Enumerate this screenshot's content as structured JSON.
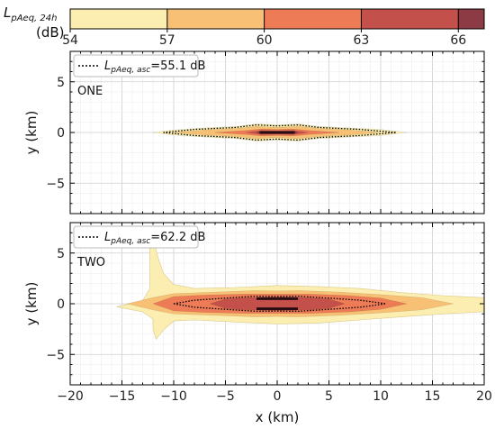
{
  "colorbar": {
    "title_main": "L",
    "title_sub": "pAeq, 24h",
    "unit": "(dB)",
    "levels": [
      54,
      57,
      60,
      63,
      66
    ],
    "colors": [
      "#fbeeb0",
      "#f7c074",
      "#ec7b56",
      "#c4504b",
      "#8c3a44"
    ],
    "tick_labels": [
      "54",
      "57",
      "60",
      "63",
      "66"
    ]
  },
  "chart_data": [
    {
      "type": "heatmap",
      "subplot_label": "ONE",
      "legend_entry": {
        "sym": "L",
        "sub": "pAeq, asc",
        "eq": "=55.1 dB"
      },
      "legend_position": "top-left",
      "xlim": [
        -20,
        20
      ],
      "ylim": [
        -8,
        8
      ],
      "yticks": [
        5,
        0,
        -5
      ],
      "ytick_labels": [
        "5",
        "0",
        "−5"
      ],
      "ylabel": "y (km)",
      "grid": true,
      "contours": [
        {
          "level": 54,
          "half_width_profile": [
            [
              -12,
              0.0
            ],
            [
              -10,
              0.25
            ],
            [
              -7,
              0.45
            ],
            [
              -4,
              0.6
            ],
            [
              -2,
              0.85
            ],
            [
              0,
              0.75
            ],
            [
              2,
              0.85
            ],
            [
              4,
              0.6
            ],
            [
              7,
              0.45
            ],
            [
              10,
              0.3
            ],
            [
              12.5,
              0.0
            ]
          ]
        },
        {
          "level": 57,
          "half_width_profile": [
            [
              -10,
              0.0
            ],
            [
              -7,
              0.25
            ],
            [
              -4,
              0.4
            ],
            [
              -2,
              0.6
            ],
            [
              0,
              0.5
            ],
            [
              2,
              0.6
            ],
            [
              4,
              0.4
            ],
            [
              7,
              0.25
            ],
            [
              10,
              0.0
            ]
          ]
        },
        {
          "level": 60,
          "half_width_profile": [
            [
              -6,
              0.0
            ],
            [
              -3,
              0.2
            ],
            [
              -1.5,
              0.35
            ],
            [
              0,
              0.3
            ],
            [
              1.5,
              0.35
            ],
            [
              3,
              0.2
            ],
            [
              6,
              0.0
            ]
          ]
        },
        {
          "level": 63,
          "half_width_profile": [
            [
              -3,
              0.0
            ],
            [
              -1.5,
              0.2
            ],
            [
              0,
              0.15
            ],
            [
              1.5,
              0.2
            ],
            [
              3,
              0.0
            ]
          ]
        },
        {
          "level": 66,
          "half_width_profile": [
            [
              -2,
              0.0
            ],
            [
              -1.8,
              0.08
            ],
            [
              1.8,
              0.08
            ],
            [
              2,
              0.0
            ]
          ]
        }
      ],
      "asc_contour": {
        "level": 55.1,
        "half_width_profile": [
          [
            -11,
            0.0
          ],
          [
            -8,
            0.3
          ],
          [
            -4,
            0.5
          ],
          [
            -2,
            0.75
          ],
          [
            0,
            0.65
          ],
          [
            2,
            0.75
          ],
          [
            4,
            0.5
          ],
          [
            8,
            0.3
          ],
          [
            11.5,
            0.0
          ]
        ]
      },
      "runways": [
        {
          "x1": -1.7,
          "x2": 1.7,
          "y": 0.0
        }
      ]
    },
    {
      "type": "heatmap",
      "subplot_label": "TWO",
      "legend_entry": {
        "sym": "L",
        "sub": "pAeq, asc",
        "eq": "=62.2 dB"
      },
      "legend_position": "top-left",
      "xlim": [
        -20,
        20
      ],
      "ylim": [
        -8,
        8
      ],
      "xticks": [
        -20,
        -15,
        -10,
        -5,
        0,
        5,
        10,
        15,
        20
      ],
      "xtick_labels": [
        "−20",
        "−15",
        "−10",
        "−5",
        "0",
        "5",
        "10",
        "15",
        "20"
      ],
      "yticks": [
        5,
        0,
        -5
      ],
      "ytick_labels": [
        "5",
        "0",
        "−5"
      ],
      "xlabel": "x (km)",
      "ylabel": "y (km)",
      "grid": true,
      "contour_54_points": [
        [
          -12.3,
          5.4
        ],
        [
          -11.8,
          5.7
        ],
        [
          -11.5,
          4.5
        ],
        [
          -11.0,
          3.0
        ],
        [
          -10.0,
          1.9
        ],
        [
          -8.0,
          1.5
        ],
        [
          -4.0,
          1.6
        ],
        [
          0.0,
          1.8
        ],
        [
          4.0,
          1.7
        ],
        [
          8.0,
          1.5
        ],
        [
          12.0,
          1.1
        ],
        [
          16.0,
          0.8
        ],
        [
          20.0,
          0.6
        ],
        [
          20.0,
          -0.8
        ],
        [
          16.0,
          -1.0
        ],
        [
          12.0,
          -1.3
        ],
        [
          8.0,
          -1.6
        ],
        [
          4.0,
          -1.9
        ],
        [
          0.0,
          -2.0
        ],
        [
          -4.0,
          -1.8
        ],
        [
          -8.0,
          -1.6
        ],
        [
          -10.0,
          -1.7
        ],
        [
          -11.0,
          -2.6
        ],
        [
          -11.7,
          -3.5
        ],
        [
          -12.0,
          -2.5
        ],
        [
          -12.0,
          -1.5
        ],
        [
          -13.0,
          -0.8
        ],
        [
          -15.5,
          -0.3
        ],
        [
          -13.0,
          0.3
        ],
        [
          -12.3,
          1.5
        ]
      ],
      "contours": [
        {
          "level": 57,
          "half_width_profile": [
            [
              -14.5,
              0.0
            ],
            [
              -12,
              0.6
            ],
            [
              -10,
              1.0
            ],
            [
              -6,
              1.15
            ],
            [
              -2,
              1.3
            ],
            [
              0,
              1.25
            ],
            [
              2,
              1.3
            ],
            [
              6,
              1.15
            ],
            [
              10,
              0.9
            ],
            [
              14,
              0.6
            ],
            [
              17,
              0.0
            ]
          ]
        },
        {
          "level": 60,
          "half_width_profile": [
            [
              -12,
              0.0
            ],
            [
              -10,
              0.7
            ],
            [
              -7,
              0.85
            ],
            [
              -3,
              0.95
            ],
            [
              0,
              0.95
            ],
            [
              3,
              0.95
            ],
            [
              7,
              0.8
            ],
            [
              10,
              0.55
            ],
            [
              12.5,
              0.0
            ]
          ]
        },
        {
          "level": 63,
          "half_width_profile": [
            [
              -6.5,
              0.0
            ],
            [
              -5,
              0.45
            ],
            [
              -3,
              0.6
            ],
            [
              0,
              0.65
            ],
            [
              3,
              0.6
            ],
            [
              5,
              0.45
            ],
            [
              6.5,
              0.0
            ]
          ]
        }
      ],
      "asc_contour": {
        "level": 62.2,
        "half_width_profile": [
          [
            -10,
            0.0
          ],
          [
            -8,
            0.35
          ],
          [
            -5,
            0.55
          ],
          [
            -2,
            0.75
          ],
          [
            0,
            0.72
          ],
          [
            2,
            0.75
          ],
          [
            5,
            0.55
          ],
          [
            8,
            0.35
          ],
          [
            10.5,
            0.0
          ]
        ]
      },
      "runways": [
        {
          "x1": -2,
          "x2": 2,
          "y": 0.5
        },
        {
          "x1": -2,
          "x2": 2,
          "y": -0.5
        }
      ]
    }
  ]
}
